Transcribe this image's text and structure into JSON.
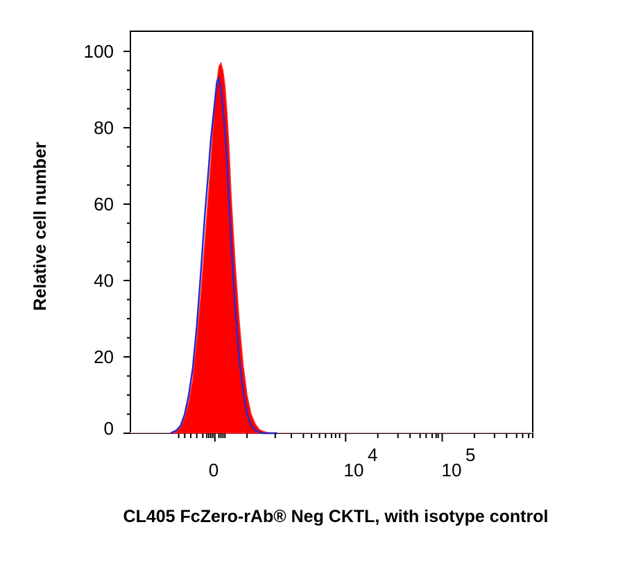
{
  "chart_data": {
    "type": "area",
    "title": "",
    "xlabel": "CL405 FcZero-rAb® Neg CKTL, with isotype control",
    "ylabel": "Relative cell number",
    "ylim": [
      0,
      100
    ],
    "y_ticks": [
      "0",
      "20",
      "40",
      "60",
      "80",
      "100"
    ],
    "x_scale": "biexponential",
    "x_ticks": [
      {
        "base": "0",
        "exp": ""
      },
      {
        "base": "10",
        "exp": "4"
      },
      {
        "base": "10",
        "exp": "5"
      }
    ],
    "legend": "none",
    "grid": false,
    "series": [
      {
        "fill": "#ff0000",
        "x": [
          0.2,
          0.23,
          0.25,
          0.27,
          0.29,
          0.31,
          0.33,
          0.35,
          0.37,
          0.39,
          0.4,
          0.41,
          0.42,
          0.43,
          0.44,
          0.45,
          0.46,
          0.47,
          0.48,
          0.49,
          0.5,
          0.52,
          0.54,
          0.56,
          0.58,
          0.6,
          0.62,
          0.64,
          0.66,
          0.68,
          0.7,
          0.73
        ],
        "y": [
          0,
          0.5,
          1.5,
          4,
          8,
          14,
          24,
          36,
          50,
          64,
          71,
          79,
          86,
          92,
          96,
          97,
          95,
          91,
          84,
          75,
          63,
          45,
          30,
          18,
          10,
          5,
          2.5,
          1,
          0.5,
          0.2,
          0,
          0
        ]
      },
      {
        "stroke": "#2a2ad0",
        "x": [
          0.2,
          0.23,
          0.25,
          0.27,
          0.29,
          0.31,
          0.33,
          0.35,
          0.37,
          0.39,
          0.4,
          0.41,
          0.42,
          0.43,
          0.44,
          0.45,
          0.46,
          0.47,
          0.48,
          0.49,
          0.5,
          0.52,
          0.54,
          0.56,
          0.58,
          0.6,
          0.62,
          0.64,
          0.66,
          0.68,
          0.7,
          0.73
        ],
        "y": [
          0,
          0.8,
          2,
          5,
          10,
          17,
          28,
          42,
          57,
          70,
          77,
          82,
          87,
          92,
          93,
          90,
          85,
          79,
          71,
          61,
          51,
          33,
          20,
          11,
          5,
          2,
          0.8,
          0.3,
          0,
          0,
          0,
          0
        ]
      }
    ]
  }
}
